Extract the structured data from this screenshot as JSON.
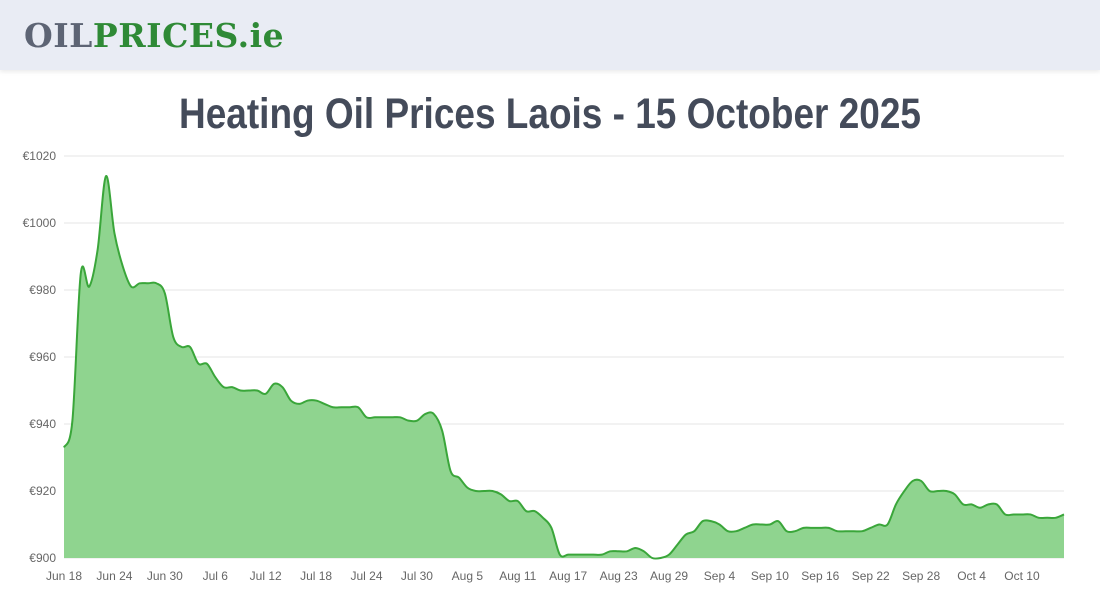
{
  "header": {
    "logo_part1": "OIL",
    "logo_part2": "PRICES",
    "logo_part3": ".ie"
  },
  "title": "Heating Oil Prices Laois - 15 October 2025",
  "colors": {
    "header_bg": "#e9ecf4",
    "logo_gray": "#5d6474",
    "brand_green": "#2f8a36",
    "line": "#3aa63a",
    "fill": "#8fd48f",
    "title": "#444b5a",
    "grid": "#e6e6e6"
  },
  "chart_data": {
    "type": "area",
    "title": "",
    "xlabel": "",
    "ylabel": "",
    "ylim": [
      900,
      1020
    ],
    "y_ticks": [
      "€900",
      "€920",
      "€940",
      "€960",
      "€980",
      "€1000",
      "€1020"
    ],
    "y_tick_values": [
      900,
      920,
      940,
      960,
      980,
      1000,
      1020
    ],
    "x_ticks": [
      "Jun 18",
      "Jun 24",
      "Jun 30",
      "Jul 6",
      "Jul 12",
      "Jul 18",
      "Jul 24",
      "Jul 30",
      "Aug 5",
      "Aug 11",
      "Aug 17",
      "Aug 23",
      "Aug 29",
      "Sep 4",
      "Sep 10",
      "Sep 16",
      "Sep 22",
      "Sep 28",
      "Oct 4",
      "Oct 10"
    ],
    "x_range": [
      "2025-06-18",
      "2025-10-15"
    ],
    "grid": true,
    "legend": "none",
    "series": [
      {
        "x": [
          "2025-06-18",
          "2025-06-19",
          "2025-06-20",
          "2025-06-21",
          "2025-06-22",
          "2025-06-23",
          "2025-06-24",
          "2025-06-25",
          "2025-06-26",
          "2025-06-27",
          "2025-06-28",
          "2025-06-29",
          "2025-06-30",
          "2025-07-01",
          "2025-07-02",
          "2025-07-03",
          "2025-07-04",
          "2025-07-05",
          "2025-07-06",
          "2025-07-07",
          "2025-07-08",
          "2025-07-09",
          "2025-07-10",
          "2025-07-11",
          "2025-07-12",
          "2025-07-13",
          "2025-07-14",
          "2025-07-15",
          "2025-07-16",
          "2025-07-17",
          "2025-07-18",
          "2025-07-19",
          "2025-07-20",
          "2025-07-21",
          "2025-07-22",
          "2025-07-23",
          "2025-07-24",
          "2025-07-25",
          "2025-07-26",
          "2025-07-27",
          "2025-07-28",
          "2025-07-29",
          "2025-07-30",
          "2025-07-31",
          "2025-08-01",
          "2025-08-02",
          "2025-08-03",
          "2025-08-04",
          "2025-08-05",
          "2025-08-06",
          "2025-08-07",
          "2025-08-08",
          "2025-08-09",
          "2025-08-10",
          "2025-08-11",
          "2025-08-12",
          "2025-08-13",
          "2025-08-14",
          "2025-08-15",
          "2025-08-16",
          "2025-08-17",
          "2025-08-18",
          "2025-08-19",
          "2025-08-20",
          "2025-08-21",
          "2025-08-22",
          "2025-08-23",
          "2025-08-24",
          "2025-08-25",
          "2025-08-26",
          "2025-08-27",
          "2025-08-28",
          "2025-08-29",
          "2025-08-30",
          "2025-08-31",
          "2025-09-01",
          "2025-09-02",
          "2025-09-03",
          "2025-09-04",
          "2025-09-05",
          "2025-09-06",
          "2025-09-07",
          "2025-09-08",
          "2025-09-09",
          "2025-09-10",
          "2025-09-11",
          "2025-09-12",
          "2025-09-13",
          "2025-09-14",
          "2025-09-15",
          "2025-09-16",
          "2025-09-17",
          "2025-09-18",
          "2025-09-19",
          "2025-09-20",
          "2025-09-21",
          "2025-09-22",
          "2025-09-23",
          "2025-09-24",
          "2025-09-25",
          "2025-09-26",
          "2025-09-27",
          "2025-09-28",
          "2025-09-29",
          "2025-09-30",
          "2025-10-01",
          "2025-10-02",
          "2025-10-03",
          "2025-10-04",
          "2025-10-05",
          "2025-10-06",
          "2025-10-07",
          "2025-10-08",
          "2025-10-09",
          "2025-10-10",
          "2025-10-11",
          "2025-10-12",
          "2025-10-13",
          "2025-10-14",
          "2025-10-15"
        ],
        "values": [
          933,
          941,
          985,
          981,
          992,
          1014,
          997,
          987,
          981,
          982,
          982,
          982,
          979,
          966,
          963,
          963,
          958,
          958,
          954,
          951,
          951,
          950,
          950,
          950,
          949,
          952,
          951,
          947,
          946,
          947,
          947,
          946,
          945,
          945,
          945,
          945,
          942,
          942,
          942,
          942,
          942,
          941,
          941,
          943,
          943,
          938,
          926,
          924,
          921,
          920,
          920,
          920,
          919,
          917,
          917,
          914,
          914,
          912,
          909,
          901,
          901,
          901,
          901,
          901,
          901,
          902,
          902,
          902,
          903,
          902,
          900,
          900,
          901,
          904,
          907,
          908,
          911,
          911,
          910,
          908,
          908,
          909,
          910,
          910,
          910,
          911,
          908,
          908,
          909,
          909,
          909,
          909,
          908,
          908,
          908,
          908,
          909,
          910,
          910,
          916,
          920,
          923,
          923,
          920,
          920,
          920,
          919,
          916,
          916,
          915,
          916,
          916,
          913,
          913,
          913,
          913,
          912,
          912,
          912,
          913
        ]
      }
    ]
  }
}
